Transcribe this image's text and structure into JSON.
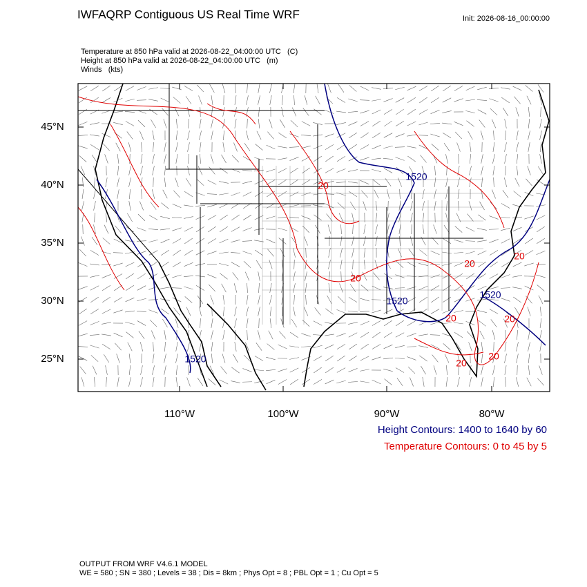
{
  "header": {
    "title": "IWFAQRP Contiguous US Real Time WRF",
    "init": "Init: 2026-08-16_00:00:00"
  },
  "fields": [
    "Temperature at 850 hPa valid at 2026-08-22_04:00:00 UTC   (C)",
    "Height at 850 hPa valid at 2026-08-22_04:00:00 UTC   (m)",
    "Winds   (kts)"
  ],
  "map": {
    "lat_labels": [
      "45°N",
      "40°N",
      "35°N",
      "30°N",
      "25°N"
    ],
    "lon_labels": [
      "110°W",
      "100°W",
      "90°W",
      "80°W"
    ],
    "height_contour_labels": [
      "1520",
      "1520",
      "1520",
      "1520"
    ],
    "temperature_contour_labels": [
      "20",
      "20",
      "20",
      "20",
      "20",
      "20",
      "20",
      "20"
    ]
  },
  "legend": [
    "Height Contours: 1400 to 1640 by 60",
    "Temperature Contours: 0 to 45 by 5"
  ],
  "footer": [
    "OUTPUT FROM WRF V4.6.1 MODEL",
    "WE = 580 ; SN = 380 ; Levels = 38 ; Dis = 8km ; Phys Opt = 8 ; PBL Opt = 1 ; Cu Opt = 5"
  ]
}
